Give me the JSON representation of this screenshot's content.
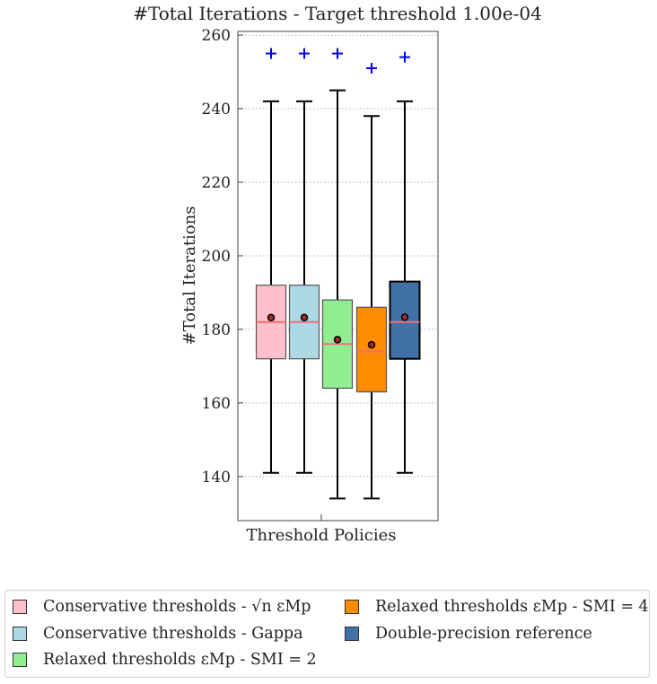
{
  "chart_data": {
    "type": "box",
    "title": "#Total Iterations - Target threshold 1.00e-04",
    "xlabel": "Threshold Policies",
    "ylabel": "#Total Iterations",
    "ylim": [
      128,
      261
    ],
    "yticks": [
      140,
      160,
      180,
      200,
      220,
      240,
      260
    ],
    "grid": "horizontal-dotted",
    "series": [
      {
        "name": "Conservative thresholds - √n εMp",
        "color": "#ffc0cb",
        "whisker_low": 141,
        "q1": 172,
        "median": 182,
        "q3": 192,
        "whisker_high": 242,
        "mean": 183.2,
        "outliers": [
          255
        ]
      },
      {
        "name": "Conservative thresholds - Gappa",
        "color": "#add8e6",
        "whisker_low": 141,
        "q1": 172,
        "median": 182,
        "q3": 192,
        "whisker_high": 242,
        "mean": 183.2,
        "outliers": [
          255
        ]
      },
      {
        "name": "Relaxed thresholds εMp - SMI = 2",
        "color": "#90ee90",
        "whisker_low": 134,
        "q1": 164,
        "median": 176,
        "q3": 188,
        "whisker_high": 245,
        "mean": 177.2,
        "outliers": [
          255
        ]
      },
      {
        "name": "Relaxed thresholds εMp - SMI = 4",
        "color": "#ff8c00",
        "whisker_low": 134,
        "q1": 163,
        "median": 174,
        "q3": 186,
        "whisker_high": 238,
        "mean": 175.8,
        "outliers": [
          251
        ]
      },
      {
        "name": "Double-precision reference",
        "color": "#4271a8",
        "whisker_low": 141,
        "q1": 172,
        "median": 182,
        "q3": 193,
        "whisker_high": 242,
        "mean": 183.3,
        "outliers": [
          254
        ]
      }
    ]
  },
  "legend": {
    "items": [
      {
        "label": "Conservative thresholds - √n εMp",
        "color": "#ffc0cb"
      },
      {
        "label": "Conservative thresholds - Gappa",
        "color": "#add8e6"
      },
      {
        "label": "Relaxed thresholds εMp - SMI = 2",
        "color": "#90ee90"
      },
      {
        "label": "Relaxed thresholds εMp - SMI = 4",
        "color": "#ff8c00"
      },
      {
        "label": "Double-precision reference",
        "color": "#4271a8"
      }
    ]
  }
}
